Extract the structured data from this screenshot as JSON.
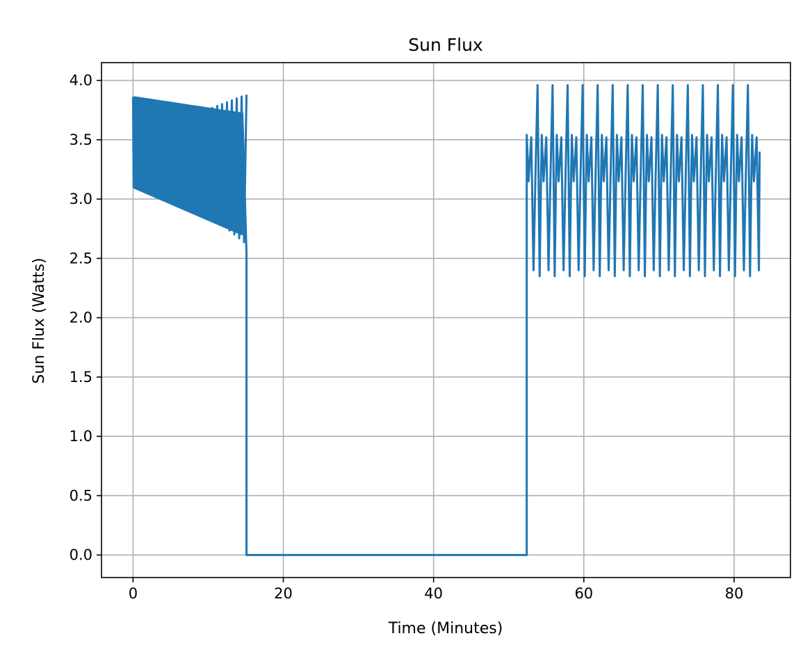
{
  "chart_data": {
    "type": "line",
    "title": "Sun Flux",
    "xlabel": "Time (Minutes)",
    "ylabel": "Sun Flux (Watts)",
    "xlim": [
      -4.2,
      87.5
    ],
    "ylim": [
      -0.19,
      4.15
    ],
    "xticks": [
      0,
      20,
      40,
      60,
      80
    ],
    "xtick_labels": [
      "0",
      "20",
      "40",
      "60",
      "80"
    ],
    "yticks": [
      0.0,
      0.5,
      1.0,
      1.5,
      2.0,
      2.5,
      3.0,
      3.5,
      4.0
    ],
    "ytick_labels": [
      "0.0",
      "0.5",
      "1.0",
      "1.5",
      "2.0",
      "2.5",
      "3.0",
      "3.5",
      "4.0"
    ],
    "grid": true,
    "line_color": "#1f77b4",
    "series": [
      {
        "segments": [
          {
            "kind": "dense_oscillation",
            "x_start": 0.0,
            "x_end": 14.6,
            "period": 0.15,
            "max_start": 3.86,
            "max_end": 3.72,
            "min_start": 3.1,
            "min_end": 2.7
          },
          {
            "kind": "wide_oscillation",
            "x_start": 8.6,
            "x_end": 15.1,
            "period": 0.65,
            "max_start": 3.72,
            "max_end": 3.88,
            "min_start": 2.95,
            "min_end": 2.62
          },
          {
            "kind": "points",
            "x": [
              15.1,
              15.1,
              52.4,
              52.4
            ],
            "y": [
              2.55,
              0.0,
              0.0,
              2.8
            ]
          },
          {
            "kind": "orbit_pattern",
            "x_start": 52.4,
            "x_end": 83.4,
            "period": 2.0,
            "high_peak": 3.96,
            "low_trough": 2.35,
            "mid_peak": 3.54,
            "mid_trough": 3.15,
            "deep_trough": 2.4
          }
        ]
      }
    ]
  }
}
